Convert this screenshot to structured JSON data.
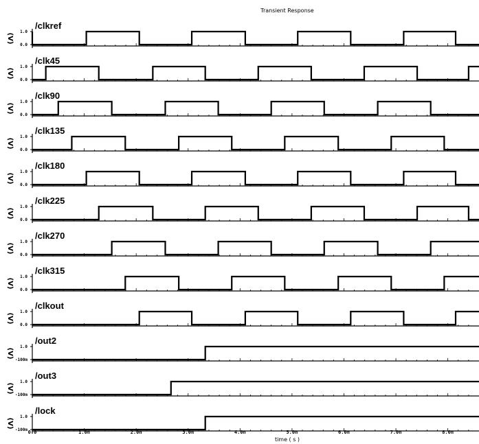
{
  "chart_data": {
    "type": "line",
    "title": "Transient Response",
    "xlabel": "time ( s )",
    "ylabel": "(V)",
    "x_unit": "ns",
    "xlim": [
      0,
      8.6
    ],
    "x_ticks": [
      "0.0",
      "1.0n",
      "2.0n",
      "3.0n",
      "4.0n",
      "5.0n",
      "6.0n",
      "7.0n",
      "8.0n"
    ],
    "x_tick_values": [
      0,
      1,
      2,
      3,
      4,
      5,
      6,
      7,
      8
    ],
    "signals": [
      {
        "name": "/clkref",
        "y_ticks": [
          "1.0",
          "0.0"
        ],
        "transitions": [
          0,
          1.04,
          2.06,
          3.07,
          4.1,
          5.11,
          6.13,
          7.15,
          8.15
        ],
        "initial": 1
      },
      {
        "name": "/clk45",
        "y_ticks": [
          "1.0",
          "0.0"
        ],
        "transitions": [
          0.26,
          1.28,
          2.32,
          3.33,
          4.35,
          5.37,
          6.39,
          7.41,
          8.4
        ],
        "initial": 0
      },
      {
        "name": "/clk90",
        "y_ticks": [
          "1.0",
          "0.0"
        ],
        "transitions": [
          0.5,
          1.53,
          2.56,
          3.58,
          4.6,
          5.62,
          6.65,
          7.67
        ],
        "initial": 0
      },
      {
        "name": "/clk135",
        "y_ticks": [
          "1.0",
          "0.0"
        ],
        "transitions": [
          0.76,
          1.79,
          2.82,
          3.84,
          4.86,
          5.89,
          6.91,
          7.93
        ],
        "initial": 0
      },
      {
        "name": "/clk180",
        "y_ticks": [
          "1.0",
          "0.0"
        ],
        "transitions": [
          1.04,
          2.06,
          3.07,
          4.1,
          5.11,
          6.13,
          7.15,
          8.15
        ],
        "initial": 0
      },
      {
        "name": "/clk225",
        "y_ticks": [
          "1.0",
          "0.0"
        ],
        "transitions": [
          1.28,
          2.32,
          3.33,
          4.35,
          5.37,
          6.39,
          7.41,
          8.4
        ],
        "initial": 0
      },
      {
        "name": "/clk270",
        "y_ticks": [
          "1.0",
          "0.0"
        ],
        "transitions": [
          1.53,
          2.56,
          3.58,
          4.6,
          5.62,
          6.65,
          7.67
        ],
        "initial": 0
      },
      {
        "name": "/clk315",
        "y_ticks": [
          "1.0",
          "0.0"
        ],
        "transitions": [
          1.79,
          2.82,
          3.84,
          4.86,
          5.89,
          6.91,
          7.93
        ],
        "initial": 0
      },
      {
        "name": "/clkout",
        "y_ticks": [
          "1.0",
          "0.0"
        ],
        "transitions": [
          2.06,
          3.07,
          4.1,
          5.11,
          6.13,
          7.15,
          8.15
        ],
        "initial": 0
      },
      {
        "name": "/out2",
        "y_ticks": [
          "1.0",
          "-100m"
        ],
        "transitions": [
          3.33
        ],
        "initial": 0
      },
      {
        "name": "/out3",
        "y_ticks": [
          "1.0",
          "-100m"
        ],
        "transitions": [
          2.67
        ],
        "initial": 0
      },
      {
        "name": "/lock",
        "y_ticks": [
          "1.0",
          "-100m"
        ],
        "transitions": [
          3.33
        ],
        "initial": 0
      }
    ]
  }
}
